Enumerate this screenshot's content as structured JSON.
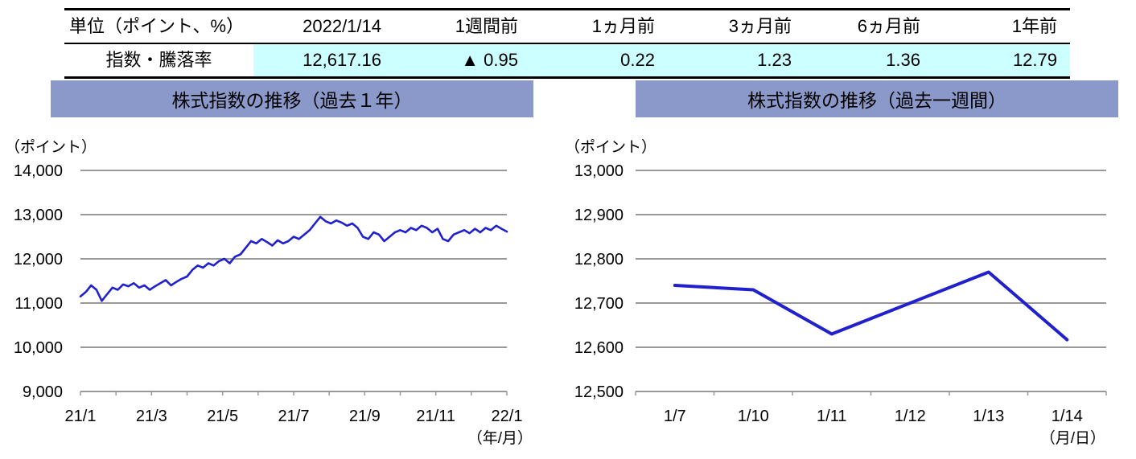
{
  "table": {
    "headers": [
      "単位（ポイント、%）",
      "2022/1/14",
      "1週間前",
      "1ヵ月前",
      "3ヵ月前",
      "6ヵ月前",
      "1年前"
    ],
    "row_label": "指数・騰落率",
    "values": [
      "12,617.16",
      "▲ 0.95",
      "0.22",
      "1.23",
      "1.36",
      "12.79"
    ]
  },
  "colors": {
    "band": "#8A99C9",
    "line": "#2020CD",
    "grid": "#999999",
    "highlight": "#CCFFFF"
  },
  "chart_data": [
    {
      "type": "line",
      "title": "株式指数の推移（過去１年）",
      "y_unit_label": "（ポイント）",
      "x_unit_label": "（年/月）",
      "ylim": [
        9000,
        14000
      ],
      "y_step": 1000,
      "grid": true,
      "legend": "none",
      "x_tick_labels": [
        "21/1",
        "21/3",
        "21/5",
        "21/7",
        "21/9",
        "21/11",
        "22/1"
      ],
      "values": [
        11150,
        11250,
        11400,
        11300,
        11050,
        11200,
        11350,
        11300,
        11420,
        11380,
        11450,
        11350,
        11400,
        11300,
        11380,
        11450,
        11520,
        11400,
        11480,
        11550,
        11600,
        11750,
        11850,
        11800,
        11900,
        11850,
        11950,
        12000,
        11900,
        12050,
        12100,
        12250,
        12400,
        12350,
        12450,
        12380,
        12300,
        12420,
        12350,
        12400,
        12500,
        12450,
        12550,
        12650,
        12800,
        12950,
        12850,
        12800,
        12870,
        12820,
        12750,
        12800,
        12700,
        12500,
        12450,
        12600,
        12550,
        12400,
        12500,
        12600,
        12650,
        12600,
        12700,
        12650,
        12750,
        12700,
        12600,
        12680,
        12450,
        12400,
        12550,
        12600,
        12650,
        12580,
        12680,
        12600,
        12700,
        12650,
        12750,
        12680,
        12617
      ],
      "line_color": "#2020CD"
    },
    {
      "type": "line",
      "title": "株式指数の推移（過去一週間）",
      "y_unit_label": "（ポイント）",
      "x_unit_label": "（月/日）",
      "ylim": [
        12500,
        13000
      ],
      "y_step": 100,
      "grid": true,
      "legend": "none",
      "categories": [
        "1/7",
        "1/10",
        "1/11",
        "1/12",
        "1/13",
        "1/14"
      ],
      "values": [
        12740,
        12730,
        12630,
        12700,
        12770,
        12617
      ],
      "line_color": "#2020CD"
    }
  ]
}
